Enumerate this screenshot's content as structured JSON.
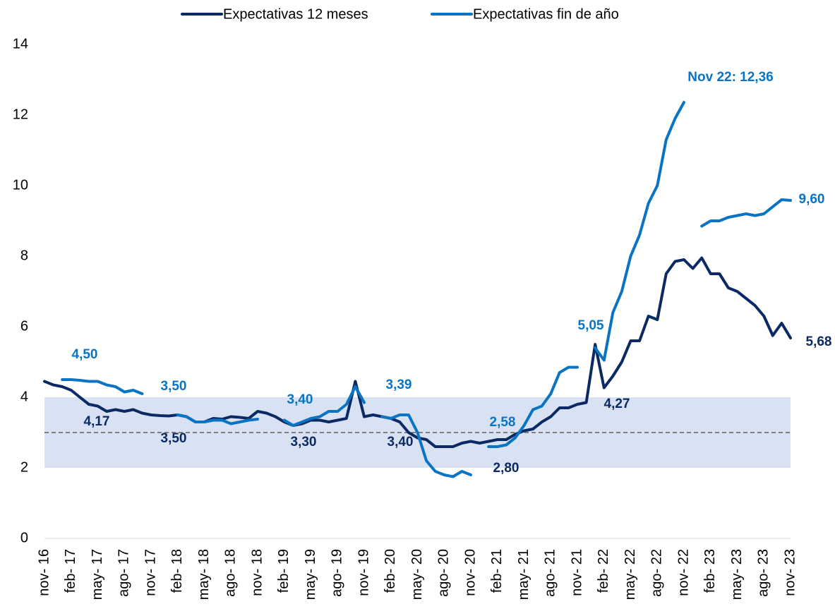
{
  "chart_data": {
    "type": "line",
    "categories": [
      "nov- 16",
      null,
      null,
      "feb- 17",
      null,
      null,
      "may- 17",
      null,
      null,
      "ago- 17",
      null,
      null,
      "nov- 17",
      null,
      null,
      "feb- 18",
      null,
      null,
      "may- 18",
      null,
      null,
      "ago- 18",
      null,
      null,
      "nov- 18",
      null,
      null,
      "feb- 19",
      null,
      null,
      "may- 19",
      null,
      null,
      "ago- 19",
      null,
      null,
      "nov- 19",
      null,
      null,
      "feb- 20",
      null,
      null,
      "may- 20",
      null,
      null,
      "ago- 20",
      null,
      null,
      "nov- 20",
      null,
      null,
      "feb- 21",
      null,
      null,
      "may- 21",
      null,
      null,
      "ago- 21",
      null,
      null,
      "nov- 21",
      null,
      null,
      "feb- 22",
      null,
      null,
      "may- 22",
      null,
      null,
      "ago- 22",
      null,
      null,
      "nov- 22",
      null,
      null,
      "feb- 23",
      null,
      null,
      "may- 23",
      null,
      null,
      "ago- 23",
      null,
      null,
      "nov- 23"
    ],
    "series": [
      {
        "name": "Expectativas 12 meses",
        "color": "#0b2a63",
        "values": [
          4.45,
          4.35,
          4.3,
          4.2,
          4.0,
          3.8,
          3.75,
          3.6,
          3.65,
          3.6,
          3.65,
          3.55,
          3.5,
          3.48,
          3.47,
          3.5,
          3.45,
          3.3,
          3.3,
          3.4,
          3.38,
          3.45,
          3.43,
          3.4,
          3.6,
          3.55,
          3.45,
          3.3,
          3.2,
          3.25,
          3.35,
          3.35,
          3.3,
          3.35,
          3.4,
          4.45,
          3.45,
          3.5,
          3.45,
          3.4,
          3.3,
          3.0,
          2.85,
          2.8,
          2.6,
          2.6,
          2.6,
          2.7,
          2.75,
          2.7,
          2.75,
          2.8,
          2.8,
          2.95,
          3.05,
          3.1,
          3.3,
          3.45,
          3.7,
          3.7,
          3.8,
          3.85,
          5.5,
          4.27,
          4.6,
          5.0,
          5.6,
          5.6,
          6.3,
          6.2,
          7.5,
          7.85,
          7.9,
          7.65,
          7.95,
          7.5,
          7.5,
          7.1,
          7.0,
          6.8,
          6.6,
          6.3,
          5.75,
          6.1,
          5.68
        ]
      },
      {
        "name": "Expectativas fin de año",
        "color": "#0a74c4",
        "values": [
          null,
          null,
          4.5,
          4.5,
          4.48,
          4.45,
          4.45,
          4.35,
          4.3,
          4.15,
          4.2,
          4.1,
          null,
          null,
          null,
          3.5,
          3.45,
          3.3,
          3.3,
          3.35,
          3.35,
          3.25,
          3.3,
          3.35,
          3.38,
          null,
          null,
          3.35,
          3.2,
          3.3,
          3.4,
          3.45,
          3.6,
          3.6,
          3.8,
          4.3,
          3.85,
          null,
          3.45,
          3.4,
          3.5,
          3.5,
          3.0,
          2.2,
          1.9,
          1.8,
          1.75,
          1.9,
          1.8,
          null,
          2.6,
          2.6,
          2.65,
          2.85,
          3.2,
          3.65,
          3.75,
          4.1,
          4.7,
          4.85,
          4.85,
          null,
          5.4,
          5.05,
          6.4,
          7.0,
          8.0,
          8.6,
          9.5,
          10.0,
          11.3,
          11.9,
          12.36,
          null,
          8.85,
          9.0,
          9.0,
          9.1,
          9.15,
          9.2,
          9.15,
          9.2,
          9.4,
          9.6,
          9.58
        ]
      }
    ],
    "ylim": [
      0,
      14
    ],
    "yticks": [
      0,
      2,
      4,
      6,
      8,
      10,
      12,
      14
    ],
    "target_band": [
      2,
      4
    ],
    "target_band_color": "#d9e2f3",
    "target_line": 3,
    "legend": "top",
    "grid": false,
    "annotations": [
      {
        "text": "4,50",
        "color": "#0a74c4"
      },
      {
        "text": "4,17",
        "color": "#0b2a63"
      },
      {
        "text": "3,50",
        "color": "#0a74c4"
      },
      {
        "text": "3,50",
        "color": "#0b2a63"
      },
      {
        "text": "3,40",
        "color": "#0a74c4"
      },
      {
        "text": "3,30",
        "color": "#0b2a63"
      },
      {
        "text": "3,39",
        "color": "#0a74c4"
      },
      {
        "text": "3,40",
        "color": "#0b2a63"
      },
      {
        "text": "2,58",
        "color": "#0a74c4"
      },
      {
        "text": "2,80",
        "color": "#0b2a63"
      },
      {
        "text": "5,05",
        "color": "#0a74c4"
      },
      {
        "text": "4,27",
        "color": "#0b2a63"
      },
      {
        "text": "Nov 22: 12,36",
        "color": "#0a74c4"
      },
      {
        "text": "9,60",
        "color": "#0a74c4"
      },
      {
        "text": "5,68",
        "color": "#0b2a63"
      }
    ]
  }
}
